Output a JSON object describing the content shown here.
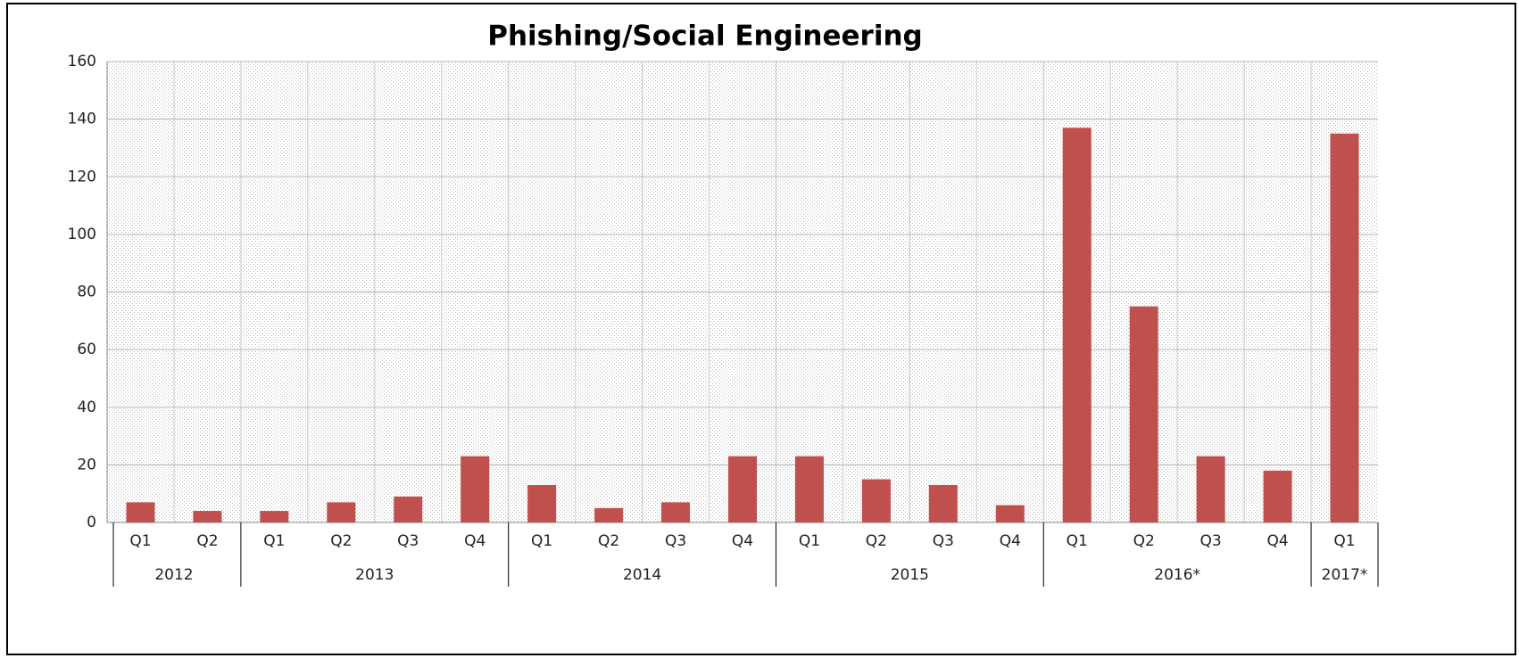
{
  "chart_data": {
    "type": "bar",
    "title": "Phishing/Social Engineering",
    "color": "#c0504d",
    "groups": [
      {
        "label": "2012",
        "categories": [
          "Q1",
          "Q2"
        ],
        "values": [
          7,
          4
        ]
      },
      {
        "label": "2013",
        "categories": [
          "Q1",
          "Q2",
          "Q3",
          "Q4"
        ],
        "values": [
          4,
          7,
          9,
          23
        ]
      },
      {
        "label": "2014",
        "categories": [
          "Q1",
          "Q2",
          "Q3",
          "Q4"
        ],
        "values": [
          13,
          5,
          7,
          23
        ]
      },
      {
        "label": "2015",
        "categories": [
          "Q1",
          "Q2",
          "Q3",
          "Q4"
        ],
        "values": [
          23,
          15,
          13,
          6
        ]
      },
      {
        "label": "2016*",
        "categories": [
          "Q1",
          "Q2",
          "Q3",
          "Q4"
        ],
        "values": [
          137,
          75,
          23,
          18
        ]
      },
      {
        "label": "2017*",
        "categories": [
          "Q1"
        ],
        "values": [
          135
        ]
      }
    ],
    "ylim": [
      0,
      160
    ],
    "yticks": [
      0,
      20,
      40,
      60,
      80,
      100,
      120,
      140,
      160
    ],
    "grid": true
  }
}
